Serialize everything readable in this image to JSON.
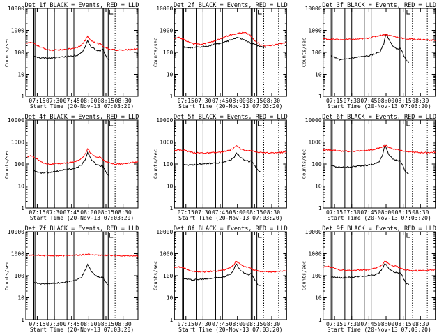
{
  "colors": {
    "events": "#000000",
    "lld": "#ff0000",
    "axis": "#000000",
    "background": "#ffffff"
  },
  "chart_data": {
    "type": "line",
    "y_scale": "log",
    "ylim": [
      1,
      10000
    ],
    "x_range": [
      "07:05",
      "08:43"
    ],
    "y_ticks": [
      "1",
      "10",
      "100",
      "1000",
      "10000"
    ],
    "x_ticks": [
      "07:15",
      "07:30",
      "07:45",
      "08:00",
      "08:15",
      "08:30"
    ],
    "ylabel": "Counts/sec",
    "xlabel": "Start Time (20-Nov-13 07:03:20)",
    "solid_markers": [
      "07:12",
      "07:13",
      "07:24",
      "07:30",
      "07:41",
      "07:47",
      "08:12",
      "08:13",
      "08:17"
    ],
    "dotted_markers": [
      "08:23",
      "08:36"
    ],
    "panels": [
      {
        "title": "Det 1f BLACK = Events, RED = LLD",
        "series": [
          {
            "role": "events",
            "x": [
              "07:12",
              "07:14",
              "07:18",
              "07:22",
              "07:26",
              "07:30",
              "07:34",
              "07:38",
              "07:42",
              "07:46",
              "07:50",
              "07:54",
              "07:57",
              "07:59",
              "08:02",
              "08:06",
              "08:10",
              "08:12",
              "08:14",
              "08:16",
              "08:18"
            ],
            "y": [
              70,
              60,
              55,
              55,
              55,
              58,
              60,
              62,
              65,
              70,
              75,
              100,
              180,
              320,
              180,
              130,
              110,
              150,
              90,
              55,
              45
            ]
          },
          {
            "role": "lld",
            "x": [
              "07:05",
              "07:09",
              "07:13",
              "07:17",
              "07:21",
              "07:25",
              "07:30",
              "07:35",
              "07:40",
              "07:45",
              "07:50",
              "07:54",
              "07:57",
              "07:59",
              "08:02",
              "08:06",
              "08:10",
              "08:14",
              "08:18",
              "08:22",
              "08:28",
              "08:34",
              "08:40",
              "08:43"
            ],
            "y": [
              260,
              280,
              240,
              180,
              150,
              130,
              125,
              130,
              135,
              150,
              170,
              230,
              350,
              520,
              350,
              260,
              250,
              170,
              140,
              130,
              125,
              130,
              140,
              150
            ]
          }
        ]
      },
      {
        "title": "Det 2f BLACK = Events, RED = LLD",
        "series": [
          {
            "role": "events",
            "x": [
              "07:12",
              "07:16",
              "07:20",
              "07:25",
              "07:30",
              "07:35",
              "07:40",
              "07:45",
              "07:50",
              "07:55",
              "08:00",
              "08:05",
              "08:10",
              "08:15",
              "08:20",
              "08:25"
            ],
            "y": [
              180,
              160,
              160,
              170,
              180,
              200,
              230,
              260,
              300,
              380,
              470,
              380,
              280,
              230,
              190,
              170
            ]
          },
          {
            "role": "lld",
            "x": [
              "07:05",
              "07:09",
              "07:13",
              "07:17",
              "07:21",
              "07:25",
              "07:30",
              "07:35",
              "07:40",
              "07:45",
              "07:50",
              "07:55",
              "08:00",
              "08:05",
              "08:08",
              "08:11",
              "08:15",
              "08:20",
              "08:25",
              "08:30",
              "08:35",
              "08:40",
              "08:43"
            ],
            "y": [
              420,
              460,
              400,
              300,
              250,
              230,
              240,
              280,
              330,
              420,
              520,
              650,
              740,
              780,
              760,
              600,
              340,
              220,
              200,
              210,
              230,
              260,
              280
            ]
          }
        ]
      },
      {
        "title": "Det 3f BLACK = Events, RED = LLD",
        "series": [
          {
            "role": "events",
            "x": [
              "07:12",
              "07:15",
              "07:20",
              "07:25",
              "07:30",
              "07:35",
              "07:40",
              "07:45",
              "07:50",
              "07:55",
              "07:58",
              "08:00",
              "08:03",
              "08:06",
              "08:10",
              "08:12",
              "08:14",
              "08:16",
              "08:18",
              "08:20"
            ],
            "y": [
              70,
              60,
              45,
              50,
              55,
              60,
              65,
              70,
              85,
              110,
              250,
              700,
              350,
              180,
              140,
              160,
              110,
              60,
              40,
              35
            ]
          },
          {
            "role": "lld",
            "x": [
              "07:05",
              "07:10",
              "07:15",
              "07:20",
              "07:25",
              "07:30",
              "07:35",
              "07:40",
              "07:45",
              "07:50",
              "07:55",
              "08:00",
              "08:05",
              "08:10",
              "08:15",
              "08:20",
              "08:25",
              "08:30",
              "08:35",
              "08:40",
              "08:43"
            ],
            "y": [
              420,
              400,
              390,
              380,
              380,
              390,
              400,
              420,
              450,
              520,
              600,
              650,
              560,
              480,
              430,
              400,
              390,
              380,
              370,
              360,
              350
            ]
          }
        ]
      },
      {
        "title": "Det 4f BLACK = Events, RED = LLD",
        "series": [
          {
            "role": "events",
            "x": [
              "07:12",
              "07:16",
              "07:20",
              "07:25",
              "07:30",
              "07:35",
              "07:40",
              "07:45",
              "07:50",
              "07:54",
              "07:57",
              "07:59",
              "08:02",
              "08:06",
              "08:10",
              "08:12",
              "08:14",
              "08:16",
              "08:18"
            ],
            "y": [
              50,
              42,
              40,
              42,
              45,
              50,
              55,
              60,
              70,
              95,
              160,
              330,
              170,
              100,
              80,
              90,
              55,
              35,
              30
            ]
          },
          {
            "role": "lld",
            "x": [
              "07:05",
              "07:09",
              "07:13",
              "07:17",
              "07:21",
              "07:25",
              "07:30",
              "07:35",
              "07:40",
              "07:45",
              "07:50",
              "07:54",
              "07:57",
              "07:59",
              "08:02",
              "08:06",
              "08:10",
              "08:14",
              "08:18",
              "08:22",
              "08:28",
              "08:34",
              "08:40",
              "08:43"
            ],
            "y": [
              210,
              240,
              200,
              140,
              110,
              100,
              100,
              105,
              110,
              120,
              140,
              190,
              300,
              500,
              300,
              210,
              200,
              140,
              110,
              100,
              100,
              110,
              120,
              130
            ]
          }
        ]
      },
      {
        "title": "Det 5f BLACK = Events, RED = LLD",
        "series": [
          {
            "role": "events",
            "x": [
              "07:12",
              "07:16",
              "07:20",
              "07:25",
              "07:30",
              "07:35",
              "07:40",
              "07:45",
              "07:50",
              "07:54",
              "07:57",
              "07:59",
              "08:02",
              "08:06",
              "08:10",
              "08:12",
              "08:14",
              "08:16",
              "08:18",
              "08:20"
            ],
            "y": [
              95,
              90,
              92,
              95,
              100,
              105,
              110,
              115,
              125,
              150,
              200,
              330,
              220,
              160,
              130,
              140,
              110,
              70,
              50,
              45
            ]
          },
          {
            "role": "lld",
            "x": [
              "07:05",
              "07:10",
              "07:15",
              "07:20",
              "07:25",
              "07:30",
              "07:35",
              "07:40",
              "07:45",
              "07:50",
              "07:55",
              "07:59",
              "08:03",
              "08:07",
              "08:11",
              "08:15",
              "08:20",
              "08:25",
              "08:30",
              "08:35",
              "08:40",
              "08:43"
            ],
            "y": [
              420,
              440,
              410,
              340,
              320,
              320,
              320,
              330,
              340,
              380,
              460,
              680,
              480,
              420,
              420,
              360,
              330,
              320,
              320,
              330,
              340,
              350
            ]
          }
        ]
      },
      {
        "title": "Det 6f BLACK = Events, RED = LLD",
        "series": [
          {
            "role": "events",
            "x": [
              "07:12",
              "07:16",
              "07:20",
              "07:25",
              "07:30",
              "07:35",
              "07:40",
              "07:45",
              "07:50",
              "07:54",
              "07:57",
              "07:59",
              "08:02",
              "08:06",
              "08:10",
              "08:12",
              "08:14",
              "08:16",
              "08:18",
              "08:20"
            ],
            "y": [
              85,
              75,
              70,
              72,
              75,
              80,
              85,
              90,
              100,
              130,
              250,
              800,
              300,
              160,
              140,
              150,
              100,
              55,
              40,
              35
            ]
          },
          {
            "role": "lld",
            "x": [
              "07:05",
              "07:10",
              "07:15",
              "07:20",
              "07:25",
              "07:30",
              "07:35",
              "07:40",
              "07:45",
              "07:50",
              "07:55",
              "07:59",
              "08:03",
              "08:07",
              "08:11",
              "08:15",
              "08:20",
              "08:25",
              "08:30",
              "08:35",
              "08:40",
              "08:43"
            ],
            "y": [
              420,
              440,
              420,
              390,
              380,
              380,
              390,
              400,
              420,
              460,
              560,
              720,
              560,
              480,
              450,
              400,
              360,
              340,
              330,
              330,
              340,
              350
            ]
          }
        ]
      },
      {
        "title": "Det 7f BLACK = Events, RED = LLD",
        "series": [
          {
            "role": "events",
            "x": [
              "07:12",
              "07:16",
              "07:20",
              "07:25",
              "07:30",
              "07:35",
              "07:40",
              "07:45",
              "07:50",
              "07:54",
              "07:57",
              "07:59",
              "08:02",
              "08:06",
              "08:10",
              "08:12",
              "08:14",
              "08:16",
              "08:18"
            ],
            "y": [
              50,
              45,
              42,
              43,
              45,
              48,
              52,
              58,
              65,
              90,
              180,
              320,
              170,
              100,
              80,
              90,
              60,
              40,
              35
            ]
          },
          {
            "role": "lld",
            "x": [
              "07:05",
              "07:10",
              "07:15",
              "07:20",
              "07:25",
              "07:30",
              "07:35",
              "07:40",
              "07:45",
              "07:50",
              "07:55",
              "08:00",
              "08:05",
              "08:10",
              "08:15",
              "08:20",
              "08:25",
              "08:30",
              "08:35",
              "08:40",
              "08:43"
            ],
            "y": [
              850,
              870,
              840,
              830,
              820,
              820,
              810,
              820,
              830,
              850,
              880,
              920,
              880,
              860,
              840,
              830,
              820,
              810,
              800,
              800,
              790
            ]
          }
        ]
      },
      {
        "title": "Det 8f BLACK = Events, RED = LLD",
        "series": [
          {
            "role": "events",
            "x": [
              "07:12",
              "07:16",
              "07:20",
              "07:25",
              "07:30",
              "07:35",
              "07:40",
              "07:45",
              "07:50",
              "07:54",
              "07:57",
              "07:59",
              "08:02",
              "08:06",
              "08:10",
              "08:12",
              "08:14",
              "08:16",
              "08:18",
              "08:20"
            ],
            "y": [
              80,
              70,
              65,
              68,
              70,
              75,
              80,
              85,
              95,
              120,
              200,
              350,
              190,
              130,
              110,
              130,
              90,
              55,
              40,
              35
            ]
          },
          {
            "role": "lld",
            "x": [
              "07:05",
              "07:09",
              "07:13",
              "07:17",
              "07:21",
              "07:25",
              "07:30",
              "07:35",
              "07:40",
              "07:45",
              "07:50",
              "07:54",
              "07:57",
              "07:59",
              "08:02",
              "08:06",
              "08:10",
              "08:14",
              "08:18",
              "08:22",
              "08:28",
              "08:34",
              "08:40",
              "08:43"
            ],
            "y": [
              220,
              250,
              230,
              180,
              160,
              150,
              150,
              155,
              160,
              170,
              190,
              240,
              330,
              470,
              340,
              260,
              240,
              180,
              160,
              150,
              150,
              155,
              160,
              170
            ]
          }
        ]
      },
      {
        "title": "Det 9f BLACK = Events, RED = LLD",
        "series": [
          {
            "role": "events",
            "x": [
              "07:12",
              "07:16",
              "07:20",
              "07:25",
              "07:30",
              "07:35",
              "07:40",
              "07:45",
              "07:50",
              "07:54",
              "07:57",
              "07:59",
              "08:02",
              "08:06",
              "08:10",
              "08:12",
              "08:14",
              "08:16",
              "08:18",
              "08:20"
            ],
            "y": [
              90,
              85,
              80,
              82,
              85,
              90,
              95,
              100,
              110,
              140,
              210,
              380,
              220,
              150,
              130,
              140,
              100,
              60,
              45,
              40
            ]
          },
          {
            "role": "lld",
            "x": [
              "07:05",
              "07:09",
              "07:13",
              "07:17",
              "07:21",
              "07:25",
              "07:30",
              "07:35",
              "07:40",
              "07:45",
              "07:50",
              "07:54",
              "07:57",
              "07:59",
              "08:02",
              "08:06",
              "08:10",
              "08:14",
              "08:18",
              "08:22",
              "08:28",
              "08:34",
              "08:40",
              "08:43"
            ],
            "y": [
              240,
              260,
              240,
              200,
              180,
              170,
              170,
              175,
              180,
              190,
              210,
              260,
              340,
              480,
              350,
              280,
              260,
              200,
              180,
              170,
              170,
              175,
              180,
              190
            ]
          }
        ]
      }
    ]
  }
}
